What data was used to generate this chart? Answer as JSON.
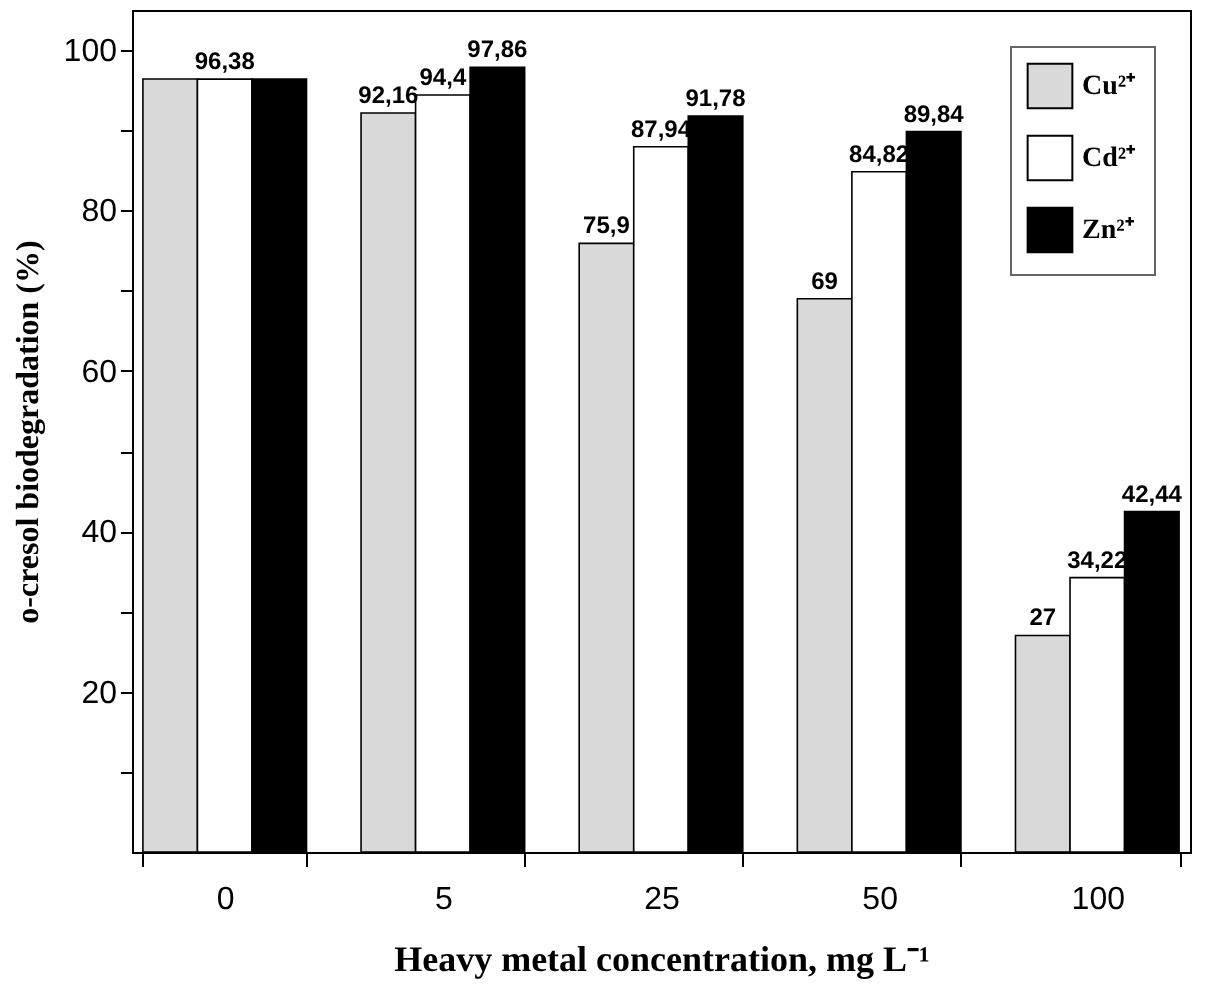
{
  "chart_data": {
    "type": "bar",
    "xlabel": "Heavy metal concentration,  mg L⁻¹",
    "ylabel": "o-cresol biodegradation  (%)",
    "categories": [
      "0",
      "5",
      "25",
      "50",
      "100"
    ],
    "series": [
      {
        "name": "Cu²⁺",
        "color": "#d9d9d9",
        "values": [
          96.4,
          92.16,
          75.9,
          69,
          27
        ],
        "value_labels": [
          null,
          "92,16",
          "75,9",
          "69",
          "27"
        ]
      },
      {
        "name": "Cd²⁺",
        "color": "#ffffff",
        "values": [
          96.38,
          94.4,
          87.94,
          84.82,
          34.22
        ],
        "value_labels": [
          "96,38",
          "94,4",
          "87,94",
          "84,82",
          "34,22"
        ]
      },
      {
        "name": "Zn²⁺",
        "color": "#000000",
        "values": [
          96.4,
          97.86,
          91.78,
          89.84,
          42.44
        ],
        "value_labels": [
          null,
          "97,86",
          "91,78",
          "89,84",
          "42,44"
        ]
      }
    ],
    "ylim": [
      0,
      105
    ],
    "yticks": [
      {
        "value": 10,
        "label": null
      },
      20,
      {
        "value": 30,
        "label": null
      },
      40,
      {
        "value": 50,
        "label": null
      },
      60,
      {
        "value": 70,
        "label": null
      },
      80,
      {
        "value": 90,
        "label": null
      },
      100
    ],
    "grid": false,
    "legend": "top right"
  }
}
